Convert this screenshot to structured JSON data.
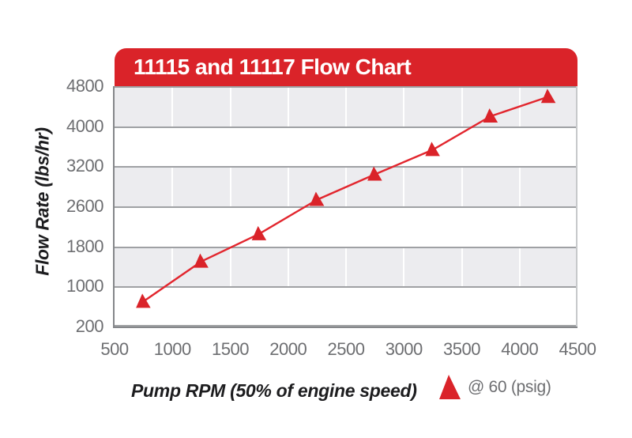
{
  "title": "11115 and 11117 Flow Chart",
  "x_axis": {
    "label": "Pump RPM (50% of engine speed)",
    "min": 500,
    "max": 4500,
    "ticks": [
      500,
      1000,
      1500,
      2000,
      2500,
      3000,
      3500,
      4000,
      4500
    ]
  },
  "y_axis": {
    "label": "Flow Rate (lbs/hr)",
    "ticks": [
      4800,
      4000,
      3200,
      2600,
      1800,
      1000,
      200
    ],
    "note": "tick labels equally spaced on axis despite non-uniform value steps"
  },
  "legend": {
    "marker_icon": "red-triangle-icon",
    "label": "@ 60 (psig)"
  },
  "colors": {
    "accent_red": "#da2329",
    "line_red": "#e2262e",
    "band_gray": "#ececef",
    "grid_line": "#9fa1a4",
    "axis_line": "#85878a",
    "right_border": "#c7c9cb",
    "tick_text": "#6d6e71",
    "title_text": "#ffffff",
    "axis_title_text": "#1d1d1f"
  },
  "chart_data": {
    "type": "line",
    "title": "11115 and 11117 Flow Chart",
    "xlabel": "Pump RPM (50% of engine speed)",
    "ylabel": "Flow Rate (lbs/hr)",
    "x_ticks": [
      500,
      1000,
      1500,
      2000,
      2500,
      3000,
      3500,
      4000,
      4500
    ],
    "y_ticks": [
      4800,
      4000,
      3200,
      2600,
      1800,
      1000,
      200
    ],
    "xlim": [
      500,
      4500
    ],
    "grid": "horizontal gray lines at each y tick; white vertical lines at each x tick over alternating gray bands",
    "banding": "alternating horizontal bands, gray in ranges 4800-4000, 3200-2600, 1800-1000",
    "legend_position": "bottom-right below chart",
    "series": [
      {
        "name": "@ 60 (psig)",
        "marker": "filled-triangle-up",
        "color": "#da2329",
        "x": [
          750,
          1250,
          1750,
          2250,
          2750,
          3250,
          3750,
          4250
        ],
        "y": [
          700,
          1500,
          2050,
          2700,
          3080,
          3530,
          4200,
          4590
        ]
      }
    ]
  }
}
